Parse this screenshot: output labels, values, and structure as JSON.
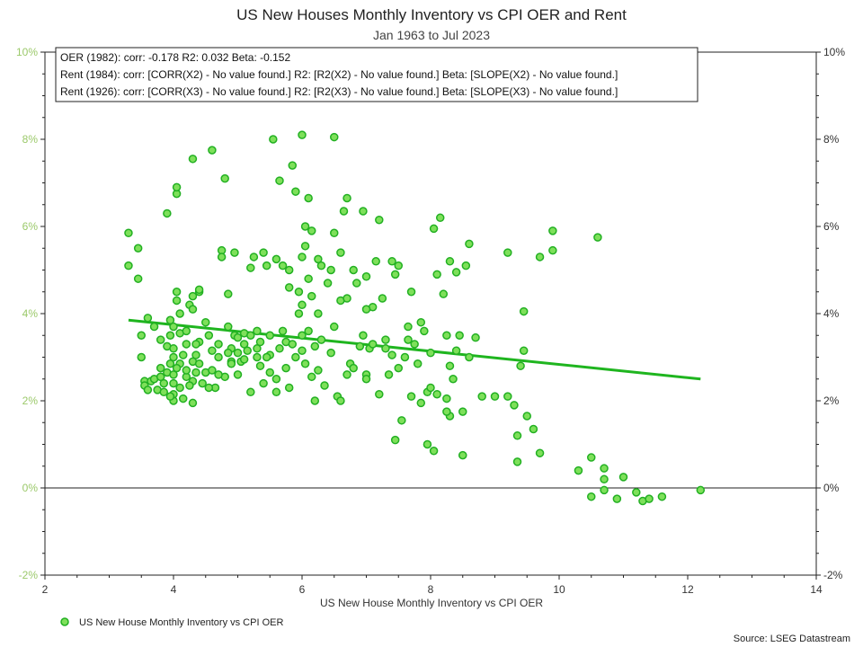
{
  "chart_data": {
    "type": "scatter",
    "title": "US New Houses Monthly Inventory vs CPI OER and Rent",
    "subtitle": "Jan 1963 to Jul 2023",
    "xlabel": "US New House Monthly Inventory vs CPI OER",
    "ylabel": "",
    "xlim": [
      2,
      14
    ],
    "ylim": [
      -2,
      10
    ],
    "x_ticks": [
      "2",
      "4",
      "6",
      "8",
      "10",
      "12",
      "14"
    ],
    "y_ticks": [
      "-2%",
      "0%",
      "2%",
      "4%",
      "6%",
      "8%",
      "10%"
    ],
    "grid": false,
    "legend_position": "bottom-left",
    "stats": [
      "OER (1982): corr: -0.178  R2: 0.032  Beta: -0.152",
      "Rent (1984): corr: [CORR(X2) - No value found.]  R2: [R2(X2) - No value found.]  Beta: [SLOPE(X2) - No value found.]",
      "Rent (1926): corr: [CORR(X3) - No value found.]  R2: [R2(X3) - No value found.]  Beta: [SLOPE(X3) - No value found.]"
    ],
    "trendline": {
      "x": [
        3.3,
        12.2
      ],
      "y": [
        3.85,
        2.5
      ]
    },
    "source": "Source: LSEG Datastream",
    "colors": {
      "marker_fill": "#7ee05a",
      "marker_stroke": "#22b022",
      "trendline": "#1fb51f",
      "left_axis": "#9bc96a"
    },
    "series": [
      {
        "name": "US New House Monthly Inventory vs CPI OER",
        "points": [
          [
            3.3,
            5.85
          ],
          [
            3.3,
            5.1
          ],
          [
            3.45,
            5.5
          ],
          [
            3.45,
            4.8
          ],
          [
            3.6,
            3.9
          ],
          [
            3.5,
            3.5
          ],
          [
            3.7,
            3.7
          ],
          [
            3.8,
            3.4
          ],
          [
            3.55,
            2.45
          ],
          [
            3.55,
            2.35
          ],
          [
            3.5,
            3.0
          ],
          [
            3.6,
            2.25
          ],
          [
            3.65,
            2.45
          ],
          [
            3.7,
            2.5
          ],
          [
            3.75,
            2.25
          ],
          [
            3.85,
            2.2
          ],
          [
            3.8,
            2.75
          ],
          [
            3.8,
            2.55
          ],
          [
            3.85,
            2.4
          ],
          [
            3.9,
            2.65
          ],
          [
            3.95,
            2.85
          ],
          [
            3.9,
            3.25
          ],
          [
            3.95,
            3.5
          ],
          [
            3.95,
            3.85
          ],
          [
            3.9,
            6.3
          ],
          [
            4.05,
            6.75
          ],
          [
            4.05,
            6.9
          ],
          [
            4.3,
            7.55
          ],
          [
            4.6,
            7.75
          ],
          [
            4.8,
            7.1
          ],
          [
            4.0,
            2.0
          ],
          [
            4.0,
            2.15
          ],
          [
            4.0,
            2.4
          ],
          [
            4.0,
            2.6
          ],
          [
            4.0,
            3.0
          ],
          [
            4.0,
            3.2
          ],
          [
            4.0,
            3.7
          ],
          [
            4.05,
            4.3
          ],
          [
            4.05,
            4.5
          ],
          [
            4.1,
            4.0
          ],
          [
            4.1,
            3.55
          ],
          [
            4.1,
            2.85
          ],
          [
            4.1,
            2.3
          ],
          [
            4.15,
            2.05
          ],
          [
            4.2,
            2.55
          ],
          [
            4.2,
            2.7
          ],
          [
            4.2,
            3.3
          ],
          [
            4.2,
            3.6
          ],
          [
            4.25,
            4.2
          ],
          [
            4.3,
            4.1
          ],
          [
            4.3,
            4.4
          ],
          [
            4.3,
            2.9
          ],
          [
            4.3,
            2.45
          ],
          [
            4.3,
            1.95
          ],
          [
            4.35,
            2.65
          ],
          [
            4.35,
            3.05
          ],
          [
            4.4,
            4.5
          ],
          [
            4.4,
            4.55
          ],
          [
            4.4,
            3.35
          ],
          [
            4.4,
            2.85
          ],
          [
            4.45,
            2.4
          ],
          [
            4.5,
            2.65
          ],
          [
            4.5,
            3.8
          ],
          [
            4.55,
            3.5
          ],
          [
            4.6,
            3.15
          ],
          [
            4.6,
            2.7
          ],
          [
            4.65,
            2.3
          ],
          [
            4.7,
            3.0
          ],
          [
            4.7,
            3.3
          ],
          [
            4.75,
            5.45
          ],
          [
            4.75,
            5.3
          ],
          [
            4.8,
            2.55
          ],
          [
            4.85,
            3.7
          ],
          [
            4.85,
            4.45
          ],
          [
            4.9,
            3.2
          ],
          [
            4.9,
            2.9
          ],
          [
            4.95,
            3.5
          ],
          [
            4.95,
            5.4
          ],
          [
            5.0,
            2.6
          ],
          [
            5.0,
            3.1
          ],
          [
            5.0,
            3.45
          ],
          [
            5.05,
            2.9
          ],
          [
            5.1,
            3.55
          ],
          [
            5.1,
            3.3
          ],
          [
            5.1,
            2.95
          ],
          [
            5.15,
            3.15
          ],
          [
            5.2,
            5.05
          ],
          [
            5.2,
            3.5
          ],
          [
            5.25,
            5.3
          ],
          [
            5.3,
            3.6
          ],
          [
            5.3,
            3.2
          ],
          [
            5.35,
            3.35
          ],
          [
            5.35,
            2.8
          ],
          [
            5.4,
            2.4
          ],
          [
            5.4,
            5.4
          ],
          [
            5.45,
            5.1
          ],
          [
            5.5,
            2.65
          ],
          [
            5.5,
            3.5
          ],
          [
            5.5,
            3.05
          ],
          [
            5.55,
            8.0
          ],
          [
            5.6,
            5.25
          ],
          [
            5.6,
            2.5
          ],
          [
            5.65,
            7.05
          ],
          [
            5.65,
            3.2
          ],
          [
            5.7,
            5.1
          ],
          [
            5.7,
            3.6
          ],
          [
            5.75,
            3.35
          ],
          [
            5.75,
            2.75
          ],
          [
            5.8,
            4.6
          ],
          [
            5.8,
            5.0
          ],
          [
            5.85,
            7.4
          ],
          [
            5.85,
            3.3
          ],
          [
            5.9,
            6.8
          ],
          [
            5.9,
            3.0
          ],
          [
            5.95,
            4.0
          ],
          [
            5.95,
            4.5
          ],
          [
            6.0,
            8.1
          ],
          [
            6.0,
            5.3
          ],
          [
            6.0,
            4.2
          ],
          [
            6.0,
            3.5
          ],
          [
            6.0,
            3.15
          ],
          [
            6.05,
            6.0
          ],
          [
            6.05,
            5.55
          ],
          [
            6.05,
            2.85
          ],
          [
            6.1,
            6.65
          ],
          [
            6.1,
            4.8
          ],
          [
            6.1,
            3.6
          ],
          [
            6.15,
            5.9
          ],
          [
            6.15,
            4.4
          ],
          [
            6.15,
            2.55
          ],
          [
            6.2,
            3.25
          ],
          [
            6.2,
            2.0
          ],
          [
            6.25,
            4.0
          ],
          [
            6.25,
            5.25
          ],
          [
            6.3,
            5.1
          ],
          [
            6.3,
            3.4
          ],
          [
            6.35,
            2.35
          ],
          [
            6.4,
            4.7
          ],
          [
            6.45,
            5.0
          ],
          [
            6.45,
            3.1
          ],
          [
            6.5,
            8.05
          ],
          [
            6.5,
            5.85
          ],
          [
            6.5,
            3.7
          ],
          [
            6.55,
            2.1
          ],
          [
            6.6,
            4.3
          ],
          [
            6.6,
            5.4
          ],
          [
            6.65,
            6.35
          ],
          [
            6.7,
            6.65
          ],
          [
            6.7,
            4.35
          ],
          [
            6.75,
            2.85
          ],
          [
            6.8,
            5.0
          ],
          [
            6.85,
            4.7
          ],
          [
            6.9,
            3.25
          ],
          [
            6.95,
            6.35
          ],
          [
            7.0,
            4.85
          ],
          [
            7.0,
            2.6
          ],
          [
            7.05,
            3.2
          ],
          [
            7.1,
            4.15
          ],
          [
            7.15,
            5.2
          ],
          [
            7.2,
            6.15
          ],
          [
            7.25,
            4.35
          ],
          [
            7.3,
            3.4
          ],
          [
            7.35,
            2.6
          ],
          [
            7.4,
            5.2
          ],
          [
            7.45,
            4.9
          ],
          [
            7.5,
            2.75
          ],
          [
            7.5,
            5.1
          ],
          [
            7.55,
            1.55
          ],
          [
            7.6,
            3.0
          ],
          [
            7.65,
            3.7
          ],
          [
            7.7,
            4.5
          ],
          [
            7.75,
            3.3
          ],
          [
            7.8,
            2.85
          ],
          [
            7.85,
            1.95
          ],
          [
            7.9,
            3.6
          ],
          [
            7.95,
            2.2
          ],
          [
            8.0,
            3.1
          ],
          [
            8.05,
            5.95
          ],
          [
            8.1,
            4.9
          ],
          [
            8.1,
            2.15
          ],
          [
            8.15,
            6.2
          ],
          [
            8.2,
            4.45
          ],
          [
            8.25,
            3.5
          ],
          [
            8.3,
            5.2
          ],
          [
            8.3,
            1.65
          ],
          [
            8.35,
            2.5
          ],
          [
            8.4,
            4.95
          ],
          [
            8.45,
            3.5
          ],
          [
            8.5,
            1.75
          ],
          [
            8.55,
            5.1
          ],
          [
            8.6,
            5.6
          ],
          [
            8.7,
            3.45
          ],
          [
            8.8,
            2.1
          ],
          [
            9.2,
            5.4
          ],
          [
            9.2,
            2.1
          ],
          [
            9.3,
            1.9
          ],
          [
            9.35,
            1.2
          ],
          [
            9.4,
            2.8
          ],
          [
            9.45,
            4.05
          ],
          [
            9.45,
            3.15
          ],
          [
            9.6,
            1.35
          ],
          [
            9.7,
            5.3
          ],
          [
            9.9,
            5.45
          ],
          [
            9.9,
            5.9
          ],
          [
            10.6,
            5.75
          ],
          [
            7.0,
            4.1
          ],
          [
            7.3,
            3.2
          ],
          [
            8.5,
            0.75
          ],
          [
            9.35,
            0.6
          ],
          [
            9.7,
            0.8
          ],
          [
            10.3,
            0.4
          ],
          [
            10.5,
            0.7
          ],
          [
            10.5,
            -0.2
          ],
          [
            10.7,
            0.45
          ],
          [
            10.7,
            0.2
          ],
          [
            10.9,
            -0.25
          ],
          [
            11.0,
            0.25
          ],
          [
            11.2,
            -0.1
          ],
          [
            11.3,
            -0.3
          ],
          [
            11.4,
            -0.25
          ],
          [
            11.6,
            -0.2
          ],
          [
            12.2,
            -0.05
          ],
          [
            10.7,
            -0.05
          ],
          [
            7.85,
            3.8
          ],
          [
            7.2,
            2.15
          ],
          [
            7.0,
            2.5
          ],
          [
            6.8,
            2.75
          ],
          [
            6.6,
            2.0
          ],
          [
            5.8,
            2.3
          ],
          [
            5.6,
            2.2
          ],
          [
            5.3,
            3.0
          ],
          [
            5.2,
            2.2
          ],
          [
            4.9,
            2.85
          ],
          [
            4.7,
            2.6
          ],
          [
            4.55,
            2.3
          ],
          [
            4.25,
            2.35
          ],
          [
            4.15,
            3.05
          ],
          [
            3.95,
            2.1
          ],
          [
            3.8,
            2.55
          ],
          [
            4.05,
            2.75
          ],
          [
            4.35,
            3.3
          ],
          [
            4.85,
            3.1
          ],
          [
            5.45,
            3.0
          ],
          [
            6.25,
            2.7
          ],
          [
            6.7,
            2.6
          ],
          [
            7.7,
            2.1
          ],
          [
            8.0,
            2.3
          ],
          [
            8.25,
            2.05
          ],
          [
            8.3,
            2.8
          ],
          [
            9.0,
            2.1
          ],
          [
            9.5,
            1.65
          ],
          [
            7.45,
            1.1
          ],
          [
            7.95,
            1.0
          ],
          [
            8.05,
            0.85
          ],
          [
            8.25,
            1.75
          ],
          [
            8.4,
            3.15
          ],
          [
            8.6,
            3.0
          ],
          [
            7.65,
            3.4
          ],
          [
            7.4,
            3.05
          ],
          [
            7.1,
            3.3
          ],
          [
            6.95,
            3.5
          ]
        ]
      }
    ]
  }
}
